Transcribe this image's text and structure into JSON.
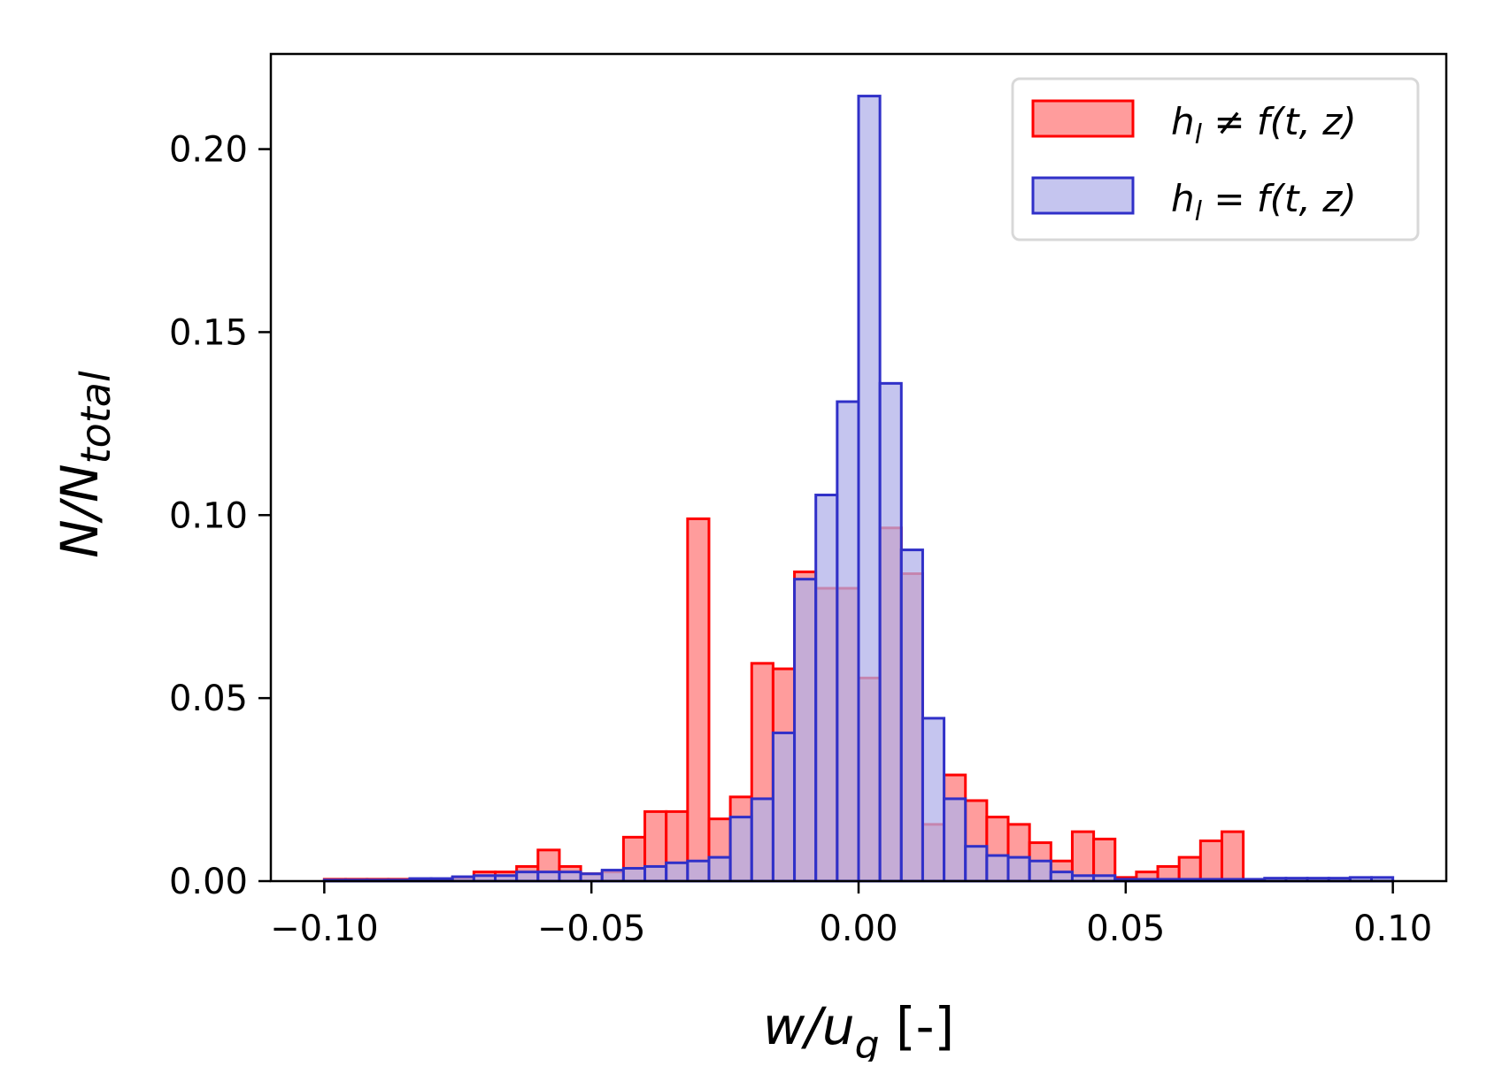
{
  "chart_data": {
    "type": "bar",
    "subtype": "overlaid-histogram",
    "title": "",
    "xlabel": "w/u",
    "xlabel_sub": "g",
    "xlabel_suffix": " [-]",
    "ylabel": "N/N",
    "ylabel_sub": "total",
    "xlim": [
      -0.11,
      0.11
    ],
    "ylim": [
      0.0,
      0.226
    ],
    "bin_width": 0.004,
    "xticks": [
      -0.1,
      -0.05,
      0.0,
      0.05,
      0.1
    ],
    "xtick_labels": [
      "−0.10",
      "−0.05",
      "0.00",
      "0.05",
      "0.10"
    ],
    "yticks": [
      0.0,
      0.05,
      0.1,
      0.15,
      0.2
    ],
    "ytick_labels": [
      "0.00",
      "0.05",
      "0.10",
      "0.15",
      "0.20"
    ],
    "legend_position": "top-right",
    "series": [
      {
        "name": "h_l ≠ f(t, z)",
        "legend_label": "h",
        "legend_sub": "l",
        "legend_rest": " ≠ f(t, z)",
        "fill": "#ff9c9c",
        "stroke": "#ff0000",
        "bin_starts": [
          -0.1,
          -0.096,
          -0.092,
          -0.088,
          -0.084,
          -0.08,
          -0.076,
          -0.072,
          -0.068,
          -0.064,
          -0.06,
          -0.056,
          -0.052,
          -0.048,
          -0.044,
          -0.04,
          -0.036,
          -0.032,
          -0.028,
          -0.024,
          -0.02,
          -0.016,
          -0.012,
          -0.008,
          -0.004,
          0.0,
          0.004,
          0.008,
          0.012,
          0.016,
          0.02,
          0.024,
          0.028,
          0.032,
          0.036,
          0.04,
          0.044,
          0.048,
          0.052,
          0.056,
          0.06,
          0.064,
          0.068
        ],
        "values": [
          0.0005,
          0.0005,
          0.0005,
          0.0005,
          0.0005,
          0.0005,
          0.001,
          0.0025,
          0.0025,
          0.004,
          0.0085,
          0.004,
          0.002,
          0.0025,
          0.012,
          0.019,
          0.019,
          0.099,
          0.017,
          0.023,
          0.0595,
          0.058,
          0.0845,
          0.08,
          0.08,
          0.0555,
          0.0965,
          0.084,
          0.0155,
          0.029,
          0.022,
          0.0175,
          0.0155,
          0.0105,
          0.0055,
          0.0135,
          0.0115,
          0.001,
          0.0025,
          0.004,
          0.0065,
          0.011,
          0.0135
        ]
      },
      {
        "name": "h_l = f(t, z)",
        "legend_label": "h",
        "legend_sub": "l",
        "legend_rest": " = f(t, z)",
        "fill": "#b1b1ea",
        "stroke": "#3030c8",
        "bin_starts": [
          -0.1,
          -0.096,
          -0.092,
          -0.088,
          -0.084,
          -0.08,
          -0.076,
          -0.072,
          -0.068,
          -0.064,
          -0.06,
          -0.056,
          -0.052,
          -0.048,
          -0.044,
          -0.04,
          -0.036,
          -0.032,
          -0.028,
          -0.024,
          -0.02,
          -0.016,
          -0.012,
          -0.008,
          -0.004,
          0.0,
          0.004,
          0.008,
          0.012,
          0.016,
          0.02,
          0.024,
          0.028,
          0.032,
          0.036,
          0.04,
          0.044,
          0.048,
          0.052,
          0.056,
          0.06,
          0.064,
          0.068,
          0.072,
          0.076,
          0.08,
          0.084,
          0.088,
          0.092,
          0.096
        ],
        "values": [
          0.0003,
          0.0003,
          0.0003,
          0.0003,
          0.0007,
          0.0007,
          0.0012,
          0.0015,
          0.0015,
          0.0025,
          0.0025,
          0.0025,
          0.002,
          0.003,
          0.0035,
          0.004,
          0.005,
          0.0055,
          0.0065,
          0.0175,
          0.0225,
          0.0405,
          0.0825,
          0.1055,
          0.131,
          0.2145,
          0.136,
          0.0905,
          0.0445,
          0.0225,
          0.0095,
          0.007,
          0.0065,
          0.0055,
          0.0025,
          0.0015,
          0.0015,
          0.0005,
          0.0005,
          0.0005,
          0.0005,
          0.0005,
          0.0005,
          0.0005,
          0.0008,
          0.0008,
          0.0008,
          0.0008,
          0.001,
          0.001
        ]
      }
    ]
  }
}
